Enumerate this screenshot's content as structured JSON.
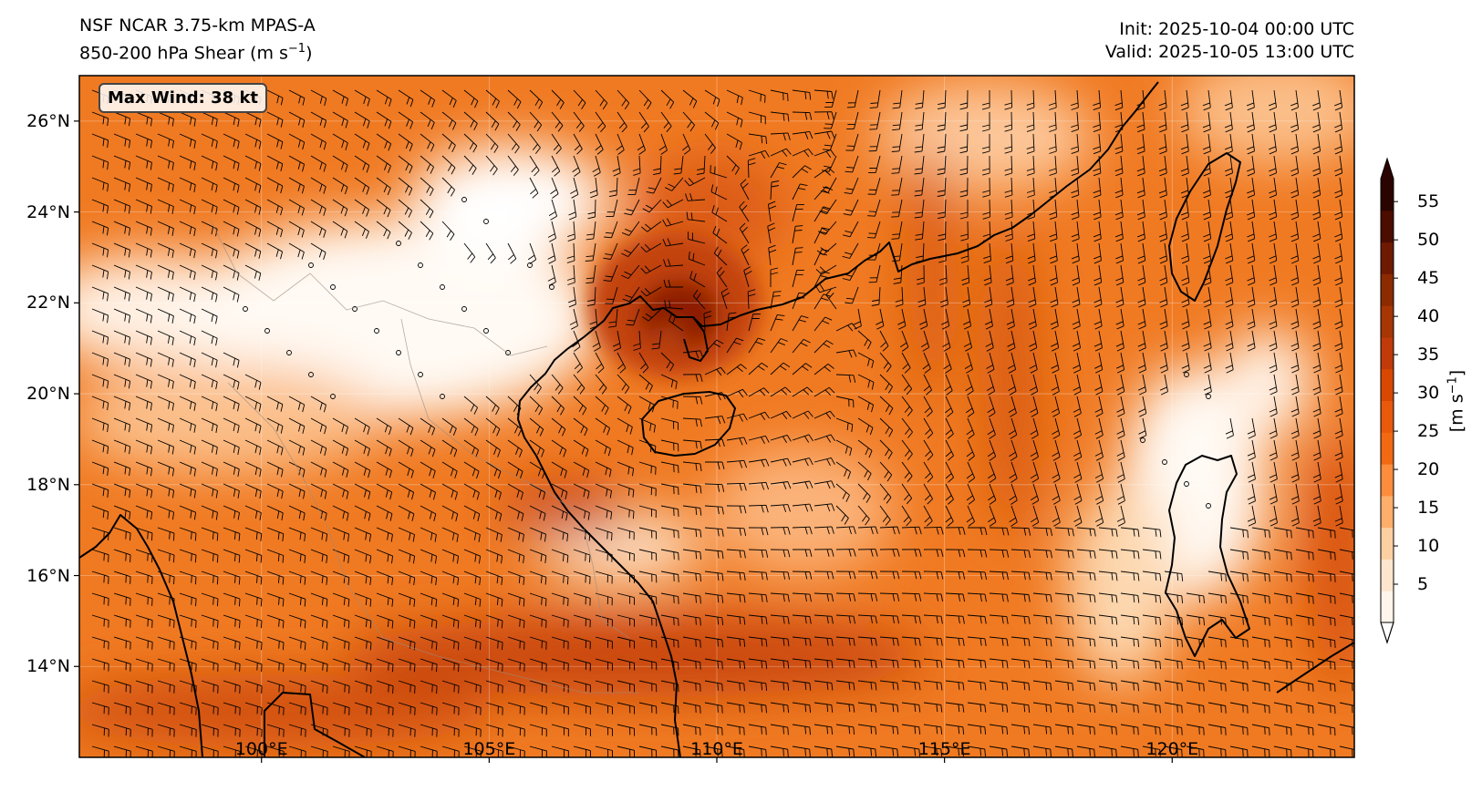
{
  "header": {
    "model": "NSF NCAR 3.75-km MPAS-A",
    "field_prefix": "850-200 hPa Shear (m s",
    "field_exp": "−1",
    "field_suffix": ")",
    "init": "Init: 2025-10-04 00:00 UTC",
    "valid": "Valid: 2025-10-05 13:00 UTC"
  },
  "map": {
    "extent": {
      "lon": [
        96,
        124
      ],
      "lat": [
        12,
        27
      ]
    },
    "max_wind_label": "Max Wind: 38 kt",
    "lat_ticks": [
      {
        "value": 14,
        "label": "14°N"
      },
      {
        "value": 16,
        "label": "16°N"
      },
      {
        "value": 18,
        "label": "18°N"
      },
      {
        "value": 20,
        "label": "20°N"
      },
      {
        "value": 22,
        "label": "22°N"
      },
      {
        "value": 24,
        "label": "24°N"
      },
      {
        "value": 26,
        "label": "26°N"
      }
    ],
    "lon_ticks": [
      {
        "value": 100,
        "label": "100°E"
      },
      {
        "value": 105,
        "label": "105°E"
      },
      {
        "value": 110,
        "label": "110°E"
      },
      {
        "value": 115,
        "label": "115°E"
      },
      {
        "value": 120,
        "label": "120°E"
      }
    ],
    "storm_center": {
      "lon": 109.2,
      "lat": 21.3
    },
    "colors": {
      "land_outline": "#000000",
      "calm": "#fff8f0",
      "strong": "#7a0c00"
    }
  },
  "colorbar": {
    "unit_prefix": "[m s",
    "unit_exp": "−1",
    "unit_suffix": "]",
    "range": [
      0,
      58
    ],
    "ticks": [
      {
        "value": 5,
        "label": "5"
      },
      {
        "value": 10,
        "label": "10"
      },
      {
        "value": 15,
        "label": "15"
      },
      {
        "value": 20,
        "label": "20"
      },
      {
        "value": 25,
        "label": "25"
      },
      {
        "value": 30,
        "label": "30"
      },
      {
        "value": 35,
        "label": "35"
      },
      {
        "value": 40,
        "label": "40"
      },
      {
        "value": 45,
        "label": "45"
      },
      {
        "value": 50,
        "label": "50"
      },
      {
        "value": 55,
        "label": "55"
      }
    ],
    "colors": [
      "#fff5eb",
      "#fee6ce",
      "#fdd0a2",
      "#fdae6b",
      "#fd8d3c",
      "#f16913",
      "#e8590c",
      "#d94801",
      "#c03a0a",
      "#a63603",
      "#8c2a00",
      "#6e1a00",
      "#4a0d00",
      "#2a0400"
    ]
  }
}
